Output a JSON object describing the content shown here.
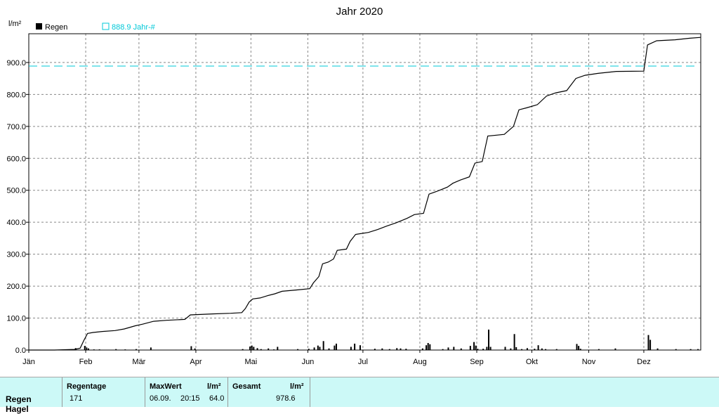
{
  "chart_data": {
    "type": "bar+line",
    "title": "Jahr 2020",
    "ylabel": "l/m²",
    "ylim": [
      0,
      990
    ],
    "grid": true,
    "legend": {
      "placement": "top-left",
      "bar_label": "Regen",
      "ref_label": "888.9 Jahr-#"
    },
    "y_ticks": [
      "0.0",
      "100.0",
      "200.0",
      "300.0",
      "400.0",
      "500.0",
      "600.0",
      "700.0",
      "800.0",
      "900.0"
    ],
    "y_tick_values": [
      0,
      100,
      200,
      300,
      400,
      500,
      600,
      700,
      800,
      900
    ],
    "month_labels": [
      "Jän",
      "Feb",
      "Mär",
      "Apr",
      "Mai",
      "Jun",
      "Jul",
      "Aug",
      "Sep",
      "Okt",
      "Nov",
      "Dez"
    ],
    "month_start_days": [
      0,
      31,
      60,
      91,
      121,
      152,
      182,
      213,
      244,
      274,
      305,
      335
    ],
    "x_range_days": [
      0,
      366
    ],
    "reference_line": {
      "value": 888.9,
      "color": "#00c8d8"
    },
    "cumulative_series": {
      "name": "Regen (Summe)",
      "color": "#000000",
      "points": [
        [
          0,
          0
        ],
        [
          14,
          0
        ],
        [
          25,
          2
        ],
        [
          28,
          6
        ],
        [
          30,
          30
        ],
        [
          32,
          52
        ],
        [
          35,
          55
        ],
        [
          40,
          58
        ],
        [
          47,
          61
        ],
        [
          52,
          66
        ],
        [
          58,
          76
        ],
        [
          62,
          81
        ],
        [
          68,
          90
        ],
        [
          75,
          93
        ],
        [
          85,
          96
        ],
        [
          88,
          110
        ],
        [
          100,
          113
        ],
        [
          110,
          115
        ],
        [
          116,
          117
        ],
        [
          118,
          130
        ],
        [
          120,
          150
        ],
        [
          122,
          160
        ],
        [
          126,
          163
        ],
        [
          130,
          170
        ],
        [
          134,
          176
        ],
        [
          138,
          184
        ],
        [
          146,
          188
        ],
        [
          153,
          192
        ],
        [
          155,
          210
        ],
        [
          158,
          230
        ],
        [
          160,
          270
        ],
        [
          163,
          275
        ],
        [
          166,
          285
        ],
        [
          168,
          312
        ],
        [
          173,
          316
        ],
        [
          175,
          340
        ],
        [
          178,
          362
        ],
        [
          185,
          368
        ],
        [
          190,
          377
        ],
        [
          195,
          388
        ],
        [
          200,
          398
        ],
        [
          206,
          412
        ],
        [
          210,
          424
        ],
        [
          215,
          428
        ],
        [
          218,
          488
        ],
        [
          222,
          496
        ],
        [
          228,
          510
        ],
        [
          231,
          522
        ],
        [
          235,
          532
        ],
        [
          240,
          542
        ],
        [
          243,
          585
        ],
        [
          247,
          590
        ],
        [
          250,
          670
        ],
        [
          259,
          675
        ],
        [
          264,
          700
        ],
        [
          267,
          752
        ],
        [
          271,
          758
        ],
        [
          277,
          768
        ],
        [
          282,
          795
        ],
        [
          287,
          805
        ],
        [
          293,
          812
        ],
        [
          298,
          850
        ],
        [
          303,
          860
        ],
        [
          310,
          866
        ],
        [
          320,
          872
        ],
        [
          335,
          873
        ],
        [
          337,
          955
        ],
        [
          342,
          968
        ],
        [
          352,
          971
        ],
        [
          360,
          976
        ],
        [
          366,
          978.6
        ]
      ]
    },
    "daily_series": {
      "name": "Regen",
      "color": "#000000",
      "points": [
        [
          25,
          6
        ],
        [
          30,
          13
        ],
        [
          31,
          8
        ],
        [
          32,
          5
        ],
        [
          35,
          2
        ],
        [
          38,
          2
        ],
        [
          47,
          3
        ],
        [
          52,
          2
        ],
        [
          58,
          3
        ],
        [
          66,
          8
        ],
        [
          88,
          12
        ],
        [
          90,
          5
        ],
        [
          116,
          3
        ],
        [
          120,
          11
        ],
        [
          121,
          14
        ],
        [
          122,
          10
        ],
        [
          124,
          6
        ],
        [
          126,
          3
        ],
        [
          130,
          5
        ],
        [
          133,
          2
        ],
        [
          135,
          10
        ],
        [
          146,
          3
        ],
        [
          152,
          4
        ],
        [
          155,
          8
        ],
        [
          157,
          14
        ],
        [
          158,
          10
        ],
        [
          160,
          28
        ],
        [
          163,
          5
        ],
        [
          166,
          14
        ],
        [
          167,
          20
        ],
        [
          175,
          10
        ],
        [
          177,
          20
        ],
        [
          180,
          15
        ],
        [
          188,
          4
        ],
        [
          192,
          5
        ],
        [
          196,
          3
        ],
        [
          200,
          6
        ],
        [
          202,
          5
        ],
        [
          205,
          4
        ],
        [
          214,
          5
        ],
        [
          216,
          15
        ],
        [
          217,
          22
        ],
        [
          218,
          18
        ],
        [
          225,
          3
        ],
        [
          228,
          8
        ],
        [
          231,
          10
        ],
        [
          235,
          5
        ],
        [
          240,
          13
        ],
        [
          242,
          25
        ],
        [
          243,
          14
        ],
        [
          244,
          4
        ],
        [
          247,
          4
        ],
        [
          249,
          10
        ],
        [
          250,
          64
        ],
        [
          251,
          10
        ],
        [
          259,
          10
        ],
        [
          262,
          5
        ],
        [
          264,
          50
        ],
        [
          265,
          9
        ],
        [
          268,
          3
        ],
        [
          271,
          6
        ],
        [
          275,
          4
        ],
        [
          277,
          15
        ],
        [
          279,
          5
        ],
        [
          281,
          3
        ],
        [
          287,
          3
        ],
        [
          298,
          19
        ],
        [
          299,
          13
        ],
        [
          300,
          4
        ],
        [
          310,
          3
        ],
        [
          319,
          5
        ],
        [
          337,
          47
        ],
        [
          338,
          32
        ],
        [
          342,
          5
        ],
        [
          352,
          3
        ],
        [
          360,
          3
        ],
        [
          364,
          3
        ]
      ]
    }
  },
  "stats_table": {
    "row_label": "Regen",
    "row_label_2": "Hagel",
    "regentage_header": "Regentage",
    "regentage_value": "171",
    "maxwert_header": "MaxWert",
    "maxwert_unit": "l/m²",
    "maxwert_date": "06.09.",
    "maxwert_time": "20:15",
    "maxwert_value": "64.0",
    "gesamt_header": "Gesamt",
    "gesamt_unit": "l/m²",
    "gesamt_value": "978.6"
  }
}
